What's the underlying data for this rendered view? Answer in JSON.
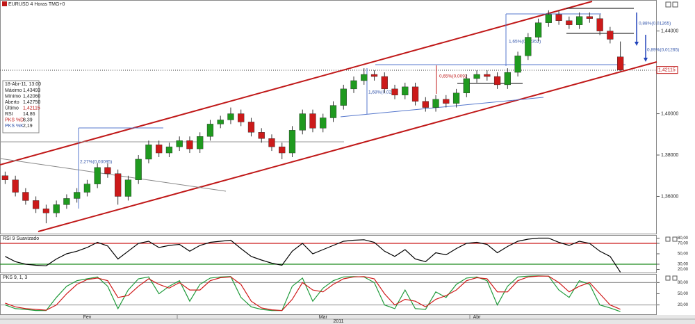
{
  "chart_data": [
    {
      "type": "candlestick",
      "title": "EURUSD 4 Horas TMG+0",
      "categories": [
        null,
        null,
        null,
        null,
        null,
        null,
        null,
        null,
        "Fev",
        null,
        null,
        null,
        null,
        null,
        null,
        null,
        null,
        null,
        null,
        null,
        null,
        null,
        null,
        null,
        null,
        null,
        null,
        null,
        null,
        null,
        null,
        "Mar",
        null,
        null,
        null,
        null,
        null,
        null,
        null,
        null,
        null,
        null,
        null,
        null,
        null,
        null,
        "Abr",
        null,
        null,
        null,
        null,
        null,
        null,
        null,
        null,
        null,
        null,
        null,
        null,
        null,
        null
      ],
      "x_label": "2011",
      "open": [
        1.37,
        1.368,
        1.362,
        1.358,
        1.354,
        1.352,
        1.356,
        1.359,
        1.362,
        1.366,
        1.374,
        1.371,
        1.36,
        1.368,
        1.378,
        1.385,
        1.381,
        1.384,
        1.387,
        1.383,
        1.389,
        1.395,
        1.397,
        1.4,
        1.396,
        1.391,
        1.388,
        1.384,
        1.381,
        1.392,
        1.4,
        1.393,
        1.398,
        1.404,
        1.412,
        1.416,
        1.419,
        1.418,
        1.412,
        1.409,
        1.413,
        1.406,
        1.403,
        1.407,
        1.405,
        1.41,
        1.417,
        1.419,
        1.418,
        1.414,
        1.42,
        1.428,
        1.437,
        1.444,
        1.448,
        1.445,
        1.443,
        1.447,
        1.446,
        1.44,
        1.4275
      ],
      "high": [
        1.372,
        1.37,
        1.364,
        1.36,
        1.356,
        1.358,
        1.361,
        1.364,
        1.368,
        1.376,
        1.376,
        1.373,
        1.37,
        1.38,
        1.387,
        1.387,
        1.386,
        1.389,
        1.389,
        1.391,
        1.397,
        1.399,
        1.403,
        1.402,
        1.398,
        1.393,
        1.39,
        1.386,
        1.394,
        1.402,
        1.402,
        1.4,
        1.406,
        1.414,
        1.418,
        1.422,
        1.421,
        1.42,
        1.414,
        1.415,
        1.415,
        1.408,
        1.409,
        1.409,
        1.412,
        1.419,
        1.421,
        1.421,
        1.42,
        1.422,
        1.43,
        1.439,
        1.446,
        1.45,
        1.45,
        1.447,
        1.449,
        1.449,
        1.448,
        1.442,
        1.43493
      ],
      "low": [
        1.366,
        1.36,
        1.356,
        1.352,
        1.347,
        1.35,
        1.354,
        1.357,
        1.36,
        1.364,
        1.369,
        1.356,
        1.358,
        1.366,
        1.376,
        1.379,
        1.379,
        1.382,
        1.381,
        1.381,
        1.387,
        1.393,
        1.395,
        1.394,
        1.389,
        1.386,
        1.382,
        1.378,
        1.379,
        1.39,
        1.391,
        1.391,
        1.396,
        1.402,
        1.41,
        1.414,
        1.416,
        1.41,
        1.407,
        1.407,
        1.404,
        1.401,
        1.401,
        1.403,
        1.403,
        1.408,
        1.415,
        1.416,
        1.412,
        1.412,
        1.418,
        1.426,
        1.435,
        1.442,
        1.443,
        1.441,
        1.441,
        1.444,
        1.438,
        1.434,
        1.4206
      ],
      "close": [
        1.368,
        1.362,
        1.358,
        1.354,
        1.352,
        1.356,
        1.359,
        1.362,
        1.366,
        1.374,
        1.371,
        1.36,
        1.368,
        1.378,
        1.385,
        1.381,
        1.384,
        1.387,
        1.383,
        1.389,
        1.395,
        1.397,
        1.4,
        1.396,
        1.391,
        1.388,
        1.384,
        1.381,
        1.392,
        1.4,
        1.393,
        1.398,
        1.404,
        1.412,
        1.416,
        1.419,
        1.418,
        1.412,
        1.409,
        1.413,
        1.406,
        1.403,
        1.407,
        1.405,
        1.41,
        1.417,
        1.419,
        1.418,
        1.414,
        1.42,
        1.428,
        1.437,
        1.444,
        1.448,
        1.445,
        1.443,
        1.447,
        1.446,
        1.44,
        1.436,
        1.42115
      ],
      "up_color": "#1f9a1f",
      "down_color": "#cc1a1a",
      "last_label": "1,42115",
      "ylim": [
        1.342,
        1.455
      ],
      "yticks": [
        {
          "value": 1.36,
          "label": "1,36000"
        },
        {
          "value": 1.38,
          "label": "1,38000"
        },
        {
          "value": 1.4,
          "label": "1,40000"
        },
        {
          "value": 1.44,
          "label": "1,44000"
        }
      ],
      "annotations": [
        "2,27%(0,03095)",
        "1,68%(0,0235",
        "1,65%(0,02352)",
        "0,65%(0,0092",
        "0,88%(0,01265)",
        "0,89%(0,01265)"
      ]
    },
    {
      "type": "line",
      "title": "RSI 9 Suavizado",
      "series": [
        {
          "name": "RSI",
          "color": "#000000",
          "values": [
            45,
            35,
            30,
            28,
            27,
            40,
            50,
            55,
            62,
            72,
            65,
            40,
            55,
            70,
            74,
            62,
            66,
            68,
            55,
            66,
            72,
            74,
            76,
            60,
            45,
            38,
            32,
            28,
            55,
            70,
            50,
            58,
            66,
            74,
            76,
            77,
            72,
            55,
            45,
            58,
            40,
            35,
            52,
            48,
            60,
            70,
            72,
            68,
            52,
            64,
            74,
            78,
            80,
            80,
            72,
            66,
            74,
            70,
            55,
            45,
            14.86
          ]
        }
      ],
      "levels": [
        {
          "value": 70,
          "color": "#cc1a1a"
        },
        {
          "value": 30,
          "color": "#1f8a1f"
        }
      ],
      "ylim": [
        14,
        86
      ],
      "yticks": [
        {
          "value": 80,
          "label": "80,00"
        },
        {
          "value": 70,
          "label": "70,00"
        },
        {
          "value": 50,
          "label": "50,00"
        },
        {
          "value": 30,
          "label": "30,00"
        },
        {
          "value": 20,
          "label": "20,00"
        }
      ]
    },
    {
      "type": "line",
      "title": "PKS 9, 1, 3",
      "series": [
        {
          "name": "PKS %K",
          "color": "#1f9a3a",
          "values": [
            20,
            10,
            8,
            5,
            5,
            40,
            70,
            85,
            90,
            95,
            70,
            10,
            60,
            90,
            95,
            50,
            70,
            85,
            30,
            75,
            92,
            95,
            96,
            40,
            15,
            8,
            5,
            5,
            70,
            92,
            30,
            65,
            85,
            95,
            96,
            95,
            80,
            20,
            10,
            60,
            10,
            8,
            55,
            40,
            75,
            92,
            95,
            85,
            20,
            70,
            95,
            97,
            98,
            97,
            60,
            40,
            85,
            75,
            20,
            12,
            2.19
          ]
        },
        {
          "name": "PKS %D",
          "color": "#d01a1a",
          "values": [
            25,
            15,
            10,
            8,
            6,
            20,
            50,
            75,
            88,
            92,
            85,
            40,
            45,
            70,
            90,
            75,
            65,
            80,
            60,
            60,
            85,
            93,
            95,
            75,
            30,
            12,
            7,
            5,
            35,
            80,
            60,
            55,
            75,
            90,
            95,
            96,
            90,
            50,
            20,
            35,
            30,
            15,
            35,
            45,
            60,
            85,
            93,
            90,
            55,
            55,
            85,
            95,
            97,
            97,
            80,
            55,
            70,
            80,
            50,
            20,
            8.39
          ]
        }
      ],
      "levels": [
        {
          "value": 80,
          "color": "#999999"
        },
        {
          "value": 20,
          "color": "#999999"
        }
      ],
      "ylim": [
        -5,
        103
      ],
      "yticks": [
        {
          "value": 80,
          "label": "80,00"
        },
        {
          "value": 50,
          "label": "50,00"
        },
        {
          "value": 20,
          "label": "20,00"
        }
      ]
    }
  ],
  "info": {
    "date": "18-Abr-11, 13:00",
    "rows": [
      [
        "Máximo",
        "1,43493"
      ],
      [
        "Mínimo",
        "1,42060"
      ],
      [
        "Aberto",
        "1,42750"
      ],
      [
        "Último",
        "1,42115"
      ],
      [
        "RSI",
        "14,86"
      ],
      [
        "PKS %D",
        "8,39"
      ],
      [
        "PKS %K",
        "2,19"
      ]
    ]
  }
}
